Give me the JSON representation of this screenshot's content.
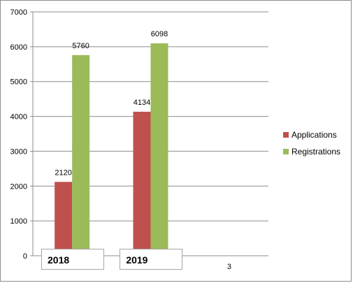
{
  "chart_data": {
    "type": "bar",
    "categories": [
      "2018",
      "2019",
      "3"
    ],
    "series": [
      {
        "name": "Applications",
        "color": "#c0504d",
        "values": [
          2120,
          4134,
          null
        ]
      },
      {
        "name": "Registrations",
        "color": "#9bbb59",
        "values": [
          5760,
          6098,
          null
        ]
      }
    ],
    "ylim": [
      0,
      7000
    ],
    "yticks": [
      0,
      1000,
      2000,
      3000,
      4000,
      5000,
      6000,
      7000
    ],
    "grid": true,
    "legend_position": "right",
    "data_labels": true
  }
}
